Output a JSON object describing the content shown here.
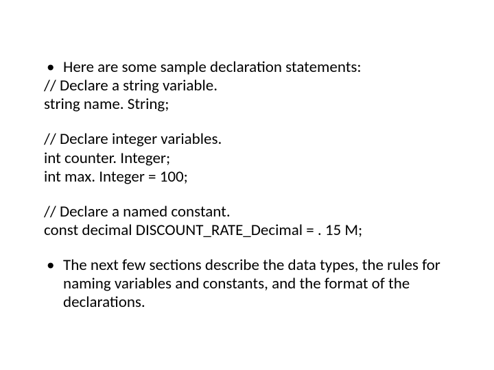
{
  "text_color": "#000000",
  "background_color": "#ffffff",
  "font_family": "Calibri, 'Segoe UI', Arial, sans-serif",
  "font_size_pt": 18,
  "line1_bullet": "Here are some sample declaration statements:",
  "line2": "// Declare a string variable.",
  "line3": "string name. String;",
  "line4": "// Declare integer variables.",
  "line5": "int counter. Integer;",
  "line6": "int max. Integer = 100;",
  "line7": "// Declare a named constant.",
  "line8": "const decimal DISCOUNT_RATE_Decimal = . 15 M;",
  "line9_bullet": "The next few sections describe the data types, the rules for naming variables and constants, and the format of the declarations."
}
